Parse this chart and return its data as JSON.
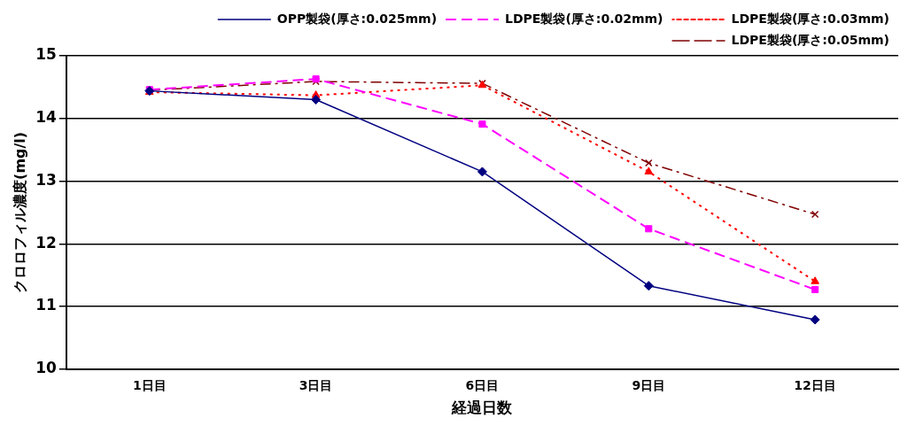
{
  "chart_data": {
    "type": "line",
    "xlabel": "経過日数",
    "ylabel": "クロロフィル濃度(mg/l)",
    "categories": [
      "1日目",
      "3日目",
      "6日目",
      "9日目",
      "12日目"
    ],
    "series": [
      {
        "name": "OPP製袋(厚さ:0.025mm)",
        "color": "#000080",
        "marker": "diamond",
        "line_style": "solid",
        "values": [
          14.44,
          14.3,
          13.15,
          11.33,
          10.79
        ]
      },
      {
        "name": "LDPE製袋(厚さ:0.02mm)",
        "color": "#ff00ff",
        "marker": "square",
        "line_style": "dashed",
        "values": [
          14.46,
          14.63,
          13.91,
          12.24,
          11.27
        ]
      },
      {
        "name": "LDPE製袋(厚さ:0.03mm)",
        "color": "#ff0000",
        "marker": "triangle",
        "line_style": "dotted",
        "values": [
          14.42,
          14.37,
          14.53,
          13.15,
          11.4
        ]
      },
      {
        "name": "LDPE製袋(厚さ:0.05mm)",
        "color": "#800000",
        "marker": "cross",
        "line_style": "dashdot",
        "values": [
          14.45,
          14.59,
          14.56,
          13.29,
          12.47
        ]
      }
    ],
    "ylim": [
      10,
      15
    ],
    "yticks": [
      10,
      11,
      12,
      13,
      14,
      15
    ],
    "grid": "y",
    "legend": "top right"
  }
}
